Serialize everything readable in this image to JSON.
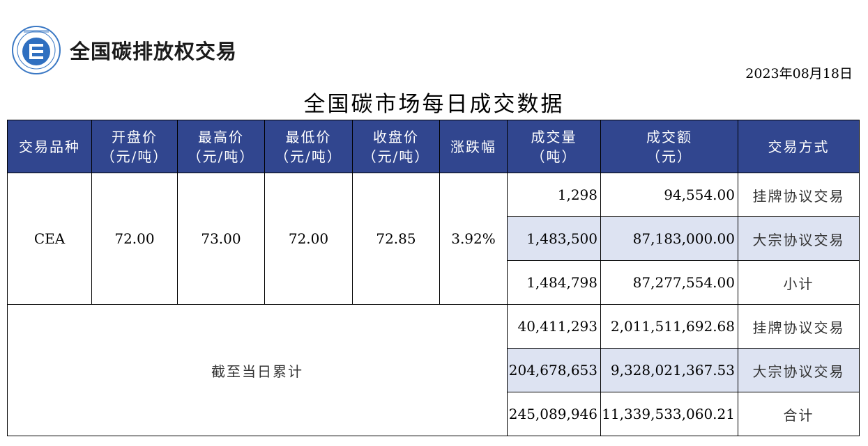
{
  "brand": {
    "name": "全国碳排放权交易"
  },
  "date": "2023年08月18日",
  "title": "全国碳市场每日成交数据",
  "headers": {
    "variety": "交易品种",
    "open": [
      "开盘价",
      "（元/吨）"
    ],
    "high": [
      "最高价",
      "（元/吨）"
    ],
    "low": [
      "最低价",
      "（元/吨）"
    ],
    "close": [
      "收盘价",
      "（元/吨）"
    ],
    "change": "涨跌幅",
    "volume": [
      "成交量",
      "（吨）"
    ],
    "amount": [
      "成交额",
      "（元）"
    ],
    "mode": "交易方式"
  },
  "daily": {
    "variety": "CEA",
    "open": "72.00",
    "high": "73.00",
    "low": "72.00",
    "close": "72.85",
    "change": "3.92%",
    "rows": [
      {
        "volume": "1,298",
        "amount": "94,554.00",
        "mode": "挂牌协议交易"
      },
      {
        "volume": "1,483,500",
        "amount": "87,183,000.00",
        "mode": "大宗协议交易"
      },
      {
        "volume": "1,484,798",
        "amount": "87,277,554.00",
        "mode": "小计"
      }
    ]
  },
  "cumulative": {
    "label": "截至当日累计",
    "rows": [
      {
        "volume": "40,411,293",
        "amount": "2,011,511,692.68",
        "mode": "挂牌协议交易"
      },
      {
        "volume": "204,678,653",
        "amount": "9,328,021,367.53",
        "mode": "大宗协议交易"
      },
      {
        "volume": "245,089,946",
        "amount": "11,339,533,060.21",
        "mode": "合计"
      }
    ]
  },
  "colors": {
    "header_bg": "#31468f",
    "highlight_row": "#dde3f2",
    "logo_blue": "#2f6fc0"
  }
}
